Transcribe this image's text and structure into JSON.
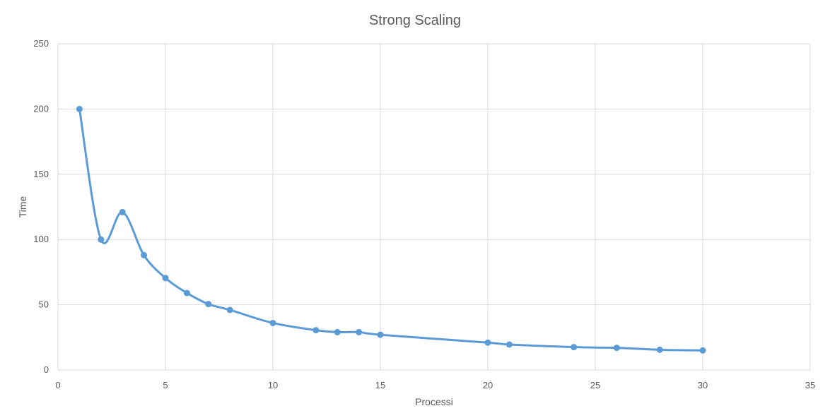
{
  "chart_data": {
    "type": "scatter",
    "title": "Strong Scaling",
    "xlabel": "Processi",
    "ylabel": "Time",
    "xlim": [
      0,
      35
    ],
    "ylim": [
      0,
      250
    ],
    "xticks": [
      0,
      5,
      10,
      15,
      20,
      25,
      30,
      35
    ],
    "yticks": [
      0,
      50,
      100,
      150,
      200,
      250
    ],
    "grid": true,
    "smooth": true,
    "series": [
      {
        "x": [
          1,
          2,
          3,
          4,
          5,
          6,
          7,
          8,
          10,
          12,
          13,
          14,
          15,
          20,
          21,
          24,
          26,
          28,
          30
        ],
        "y": [
          200,
          100,
          121,
          88,
          70.5,
          59,
          50.5,
          46,
          36,
          30.5,
          29,
          29,
          27,
          21,
          19.5,
          17.5,
          17,
          15.5,
          15
        ],
        "color": "#5b9bd5"
      }
    ]
  }
}
